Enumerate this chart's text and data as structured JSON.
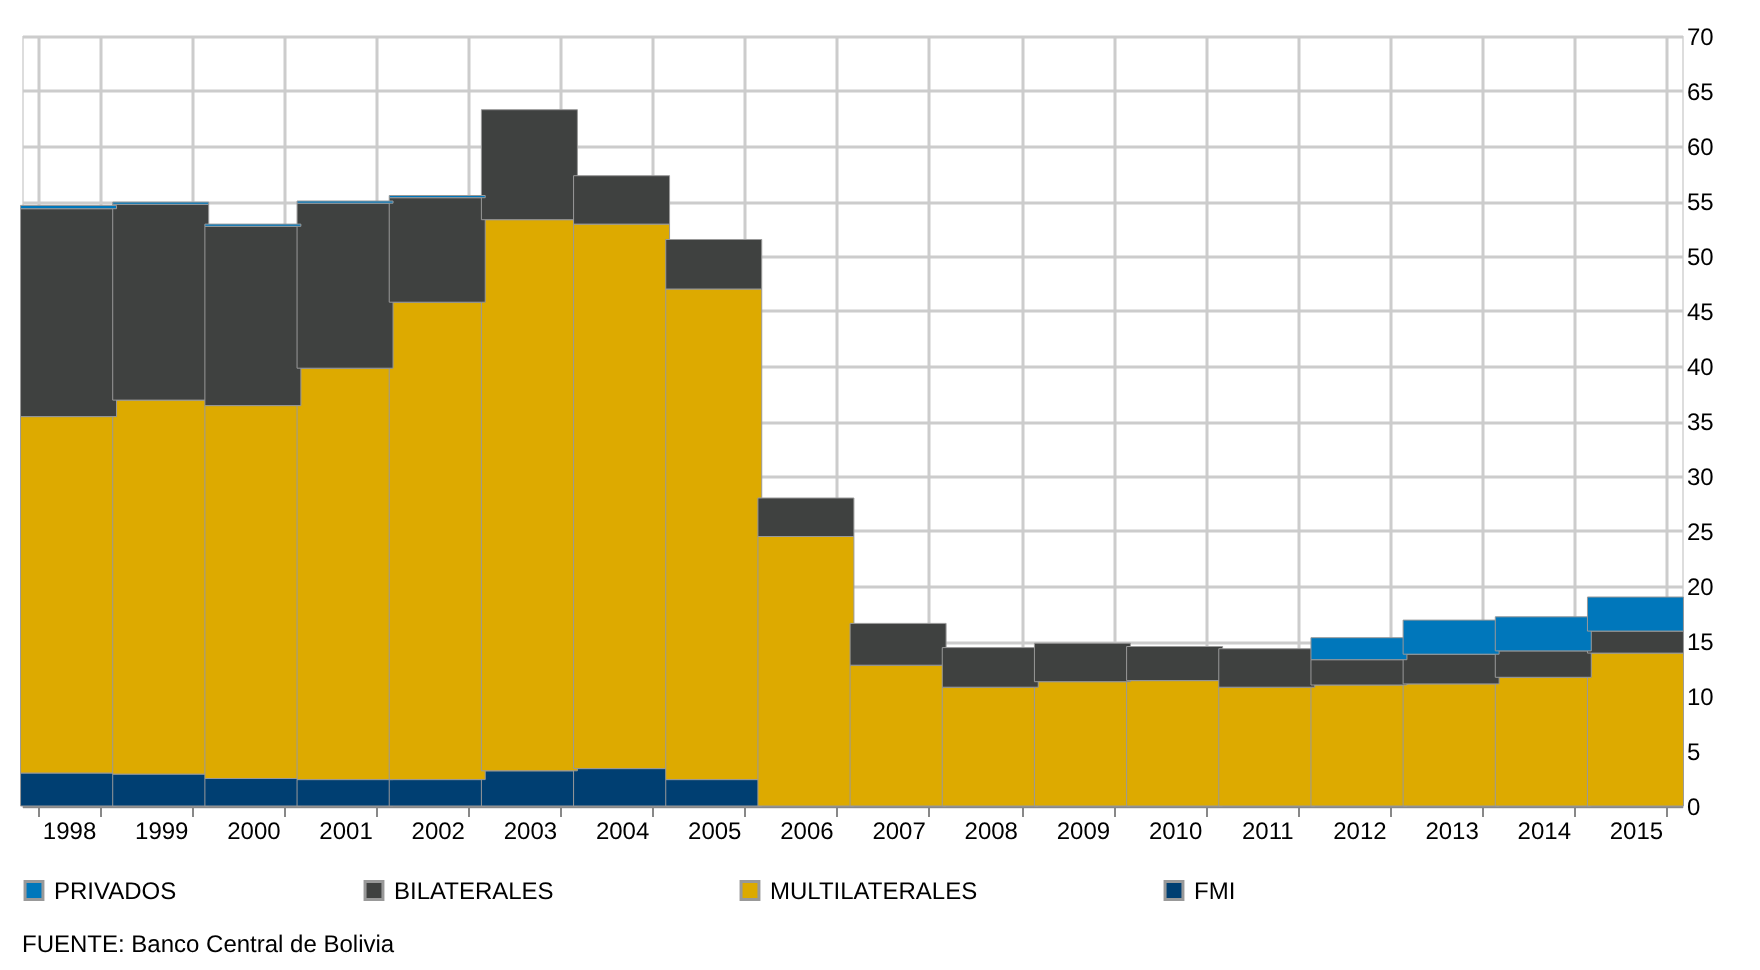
{
  "chart_data": {
    "type": "bar",
    "stacked": true,
    "categories": [
      "1998",
      "1999",
      "2000",
      "2001",
      "2002",
      "2003",
      "2004",
      "2005",
      "2006",
      "2007",
      "2008",
      "2009",
      "2010",
      "2011",
      "2012",
      "2013",
      "2014",
      "2015"
    ],
    "series": [
      {
        "name": "FMI",
        "color": "#003f72",
        "values": [
          3.0,
          2.9,
          2.5,
          2.4,
          2.4,
          3.2,
          3.4,
          2.4,
          null,
          null,
          null,
          null,
          null,
          null,
          null,
          null,
          null,
          null
        ]
      },
      {
        "name": "MULTILATERALES",
        "color": "#ddaa00",
        "values": [
          32.4,
          34.0,
          33.9,
          37.4,
          43.4,
          50.1,
          49.5,
          44.6,
          24.5,
          12.8,
          10.8,
          11.3,
          11.4,
          10.8,
          11.0,
          11.1,
          11.7,
          13.9
        ]
      },
      {
        "name": "BILATERALES",
        "color": "#3f4140",
        "values": [
          18.9,
          17.8,
          16.3,
          15.0,
          9.5,
          10.0,
          4.4,
          4.5,
          3.5,
          3.8,
          3.6,
          3.5,
          3.1,
          3.5,
          2.3,
          2.7,
          2.4,
          2.0
        ]
      },
      {
        "name": "PRIVADOS",
        "color": "#0077bb",
        "values": [
          0.3,
          0.2,
          0.2,
          0.2,
          0.2,
          null,
          null,
          null,
          null,
          null,
          null,
          null,
          null,
          null,
          2.0,
          3.1,
          3.1,
          3.1
        ]
      }
    ],
    "ylim": [
      0,
      70
    ],
    "yticks": [
      0,
      5,
      10,
      15,
      20,
      25,
      30,
      35,
      40,
      45,
      50,
      55,
      60,
      65,
      70
    ],
    "grid": true,
    "legend": "bottom",
    "annotations": [
      "FUENTE: Banco Central de Bolivia"
    ]
  }
}
